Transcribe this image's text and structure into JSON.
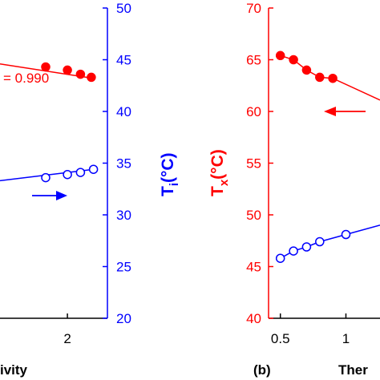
{
  "colors": {
    "red": "#ff0000",
    "blue": "#0000ff",
    "black": "#000000"
  },
  "chart_data": [
    {
      "type": "scatter",
      "panel": "a",
      "xlabel": "ivity",
      "xticks": [
        2
      ],
      "xlim": [
        0.45,
        2.92
      ],
      "right_axis": {
        "label_main": "T",
        "label_sub": "i",
        "label_unit": "(°C)",
        "ylim": [
          20,
          50
        ],
        "ticks": [
          20,
          25,
          30,
          35,
          40,
          45,
          50
        ],
        "color": "#0000ff"
      },
      "left_hidden_ylim": [
        40,
        70
      ],
      "annotation": "= 0.990",
      "arrow_direction": "right",
      "series": [
        {
          "axis": "left",
          "color": "#ff0000",
          "marker": "filled-circle",
          "points": [
            [
              1.5,
              64.3
            ],
            [
              2.0,
              64.0
            ],
            [
              2.3,
              63.6
            ],
            [
              2.55,
              63.3
            ]
          ],
          "line": [
            [
              0.45,
              64.6
            ],
            [
              2.6,
              63.2
            ]
          ]
        },
        {
          "axis": "right",
          "color": "#0000ff",
          "marker": "open-circle",
          "points": [
            [
              1.5,
              33.6
            ],
            [
              2.0,
              33.9
            ],
            [
              2.3,
              34.1
            ],
            [
              2.6,
              34.4
            ]
          ],
          "line": [
            [
              0.45,
              33.3
            ],
            [
              2.6,
              34.4
            ]
          ]
        }
      ]
    },
    {
      "type": "scatter",
      "panel": "b",
      "panel_label": "(b)",
      "xlabel": "Ther",
      "xticks": [
        0.5,
        1
      ],
      "xlim": [
        0.41,
        1.26
      ],
      "left_axis": {
        "label_main": "T",
        "label_sub": "x",
        "label_unit": "(°C)",
        "ylim": [
          40,
          70
        ],
        "ticks": [
          40,
          45,
          50,
          55,
          60,
          65,
          70
        ],
        "color": "#ff0000"
      },
      "arrow_direction": "left",
      "series": [
        {
          "axis": "left",
          "color": "#ff0000",
          "marker": "filled-circle",
          "points": [
            [
              0.5,
              65.4
            ],
            [
              0.6,
              65.0
            ],
            [
              0.7,
              64.0
            ],
            [
              0.8,
              63.3
            ],
            [
              0.9,
              63.2
            ]
          ],
          "line": [
            [
              0.5,
              65.4
            ],
            [
              0.6,
              65.0
            ],
            [
              0.7,
              64.0
            ],
            [
              0.8,
              63.3
            ],
            [
              0.9,
              63.2
            ],
            [
              1.26,
              61.1
            ]
          ]
        },
        {
          "axis": "left",
          "color": "#0000ff",
          "marker": "open-circle",
          "points": [
            [
              0.5,
              45.8
            ],
            [
              0.6,
              46.5
            ],
            [
              0.7,
              46.9
            ],
            [
              0.8,
              47.4
            ],
            [
              1.0,
              48.1
            ]
          ],
          "line": [
            [
              0.5,
              45.8
            ],
            [
              0.6,
              46.5
            ],
            [
              0.7,
              46.9
            ],
            [
              0.8,
              47.4
            ],
            [
              1.0,
              48.1
            ],
            [
              1.26,
              49.0
            ]
          ]
        }
      ]
    }
  ]
}
